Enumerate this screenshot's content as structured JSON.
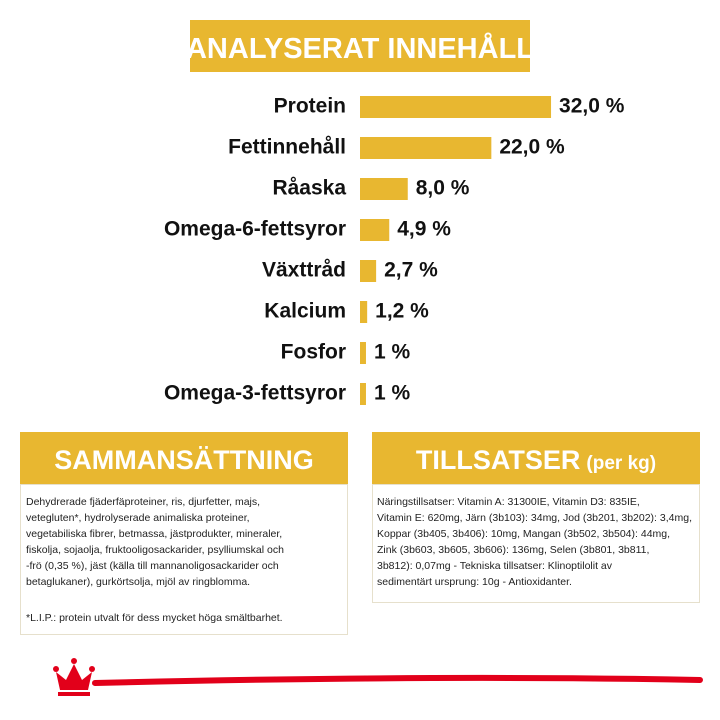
{
  "chart_data": {
    "type": "bar",
    "title": "ANALYSERAT INNEHÅLL",
    "categories": [
      "Protein",
      "Fettinnehåll",
      "Råaska",
      "Omega-6-fettsyror",
      "Växttråd",
      "Kalcium",
      "Fosfor",
      "Omega-3-fettsyror"
    ],
    "values": [
      32,
      22,
      8,
      4.9,
      2.7,
      1.2,
      1,
      1
    ],
    "value_labels": [
      "32,0 %",
      "22,0 %",
      "8,0 %",
      "4,9 %",
      "2,7 %",
      "1,2 %",
      "1 %",
      "1 %"
    ],
    "color": "#e8b730"
  },
  "composition": {
    "title": "SAMMANSÄTTNING",
    "lines": [
      "Dehydrerade fjäderfäproteiner, ris, djurfetter, majs,",
      "vetegluten*, hydrolyserade animaliska proteiner,",
      "vegetabiliska fibrer, betmassa, jästprodukter, mineraler,",
      "fiskolja, sojaolja, fruktooligosackarider, psylliumskal och",
      "-frö (0,35 %), jäst (källa till mannanoligosackarider och",
      "betaglukaner), gurkörtsolja, mjöl av ringblomma."
    ],
    "footnote": "*L.I.P.: protein utvalt för dess mycket höga smältbarhet."
  },
  "additives": {
    "title": "TILLSATSER",
    "unit": "(per kg)",
    "lines": [
      "Näringstillsatser: Vitamin A: 31300IE, Vitamin D3: 835IE,",
      "Vitamin E: 620mg, Järn (3b103): 34mg, Jod (3b201, 3b202): 3,4mg,",
      "Koppar (3b405, 3b406): 10mg, Mangan (3b502, 3b504): 44mg,",
      "Zink (3b603, 3b605, 3b606): 136mg, Selen (3b801, 3b811,",
      "3b812): 0,07mg - Tekniska tillsatser: Klinoptilolit av",
      "sedimentärt ursprung: 10g - Antioxidanter."
    ]
  }
}
